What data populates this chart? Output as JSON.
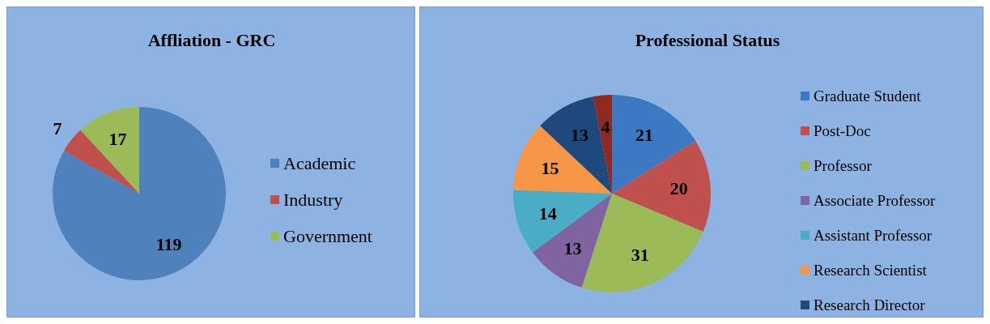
{
  "chart_data": [
    {
      "type": "pie",
      "title": "Affliation - GRC",
      "categories": [
        "Academic",
        "Industry",
        "Government"
      ],
      "values": [
        119,
        7,
        17
      ],
      "colors": [
        "#4f81bd",
        "#c0504d",
        "#9bbb59"
      ],
      "data_labels": true,
      "legend": "right"
    },
    {
      "type": "pie",
      "title": "Professional Status",
      "categories": [
        "Graduate Student",
        "Post-Doc",
        "Professor",
        "Associate Professor",
        "Assistant Professor",
        "Research Scientist",
        "Research Director",
        null
      ],
      "values": [
        21,
        20,
        31,
        13,
        14,
        15,
        13,
        4
      ],
      "colors": [
        "#3d78c2",
        "#c0504d",
        "#9bbb59",
        "#8064a2",
        "#4bacc6",
        "#f79646",
        "#1f497d",
        "#8e2a22"
      ],
      "data_labels": true,
      "legend": "right"
    }
  ]
}
